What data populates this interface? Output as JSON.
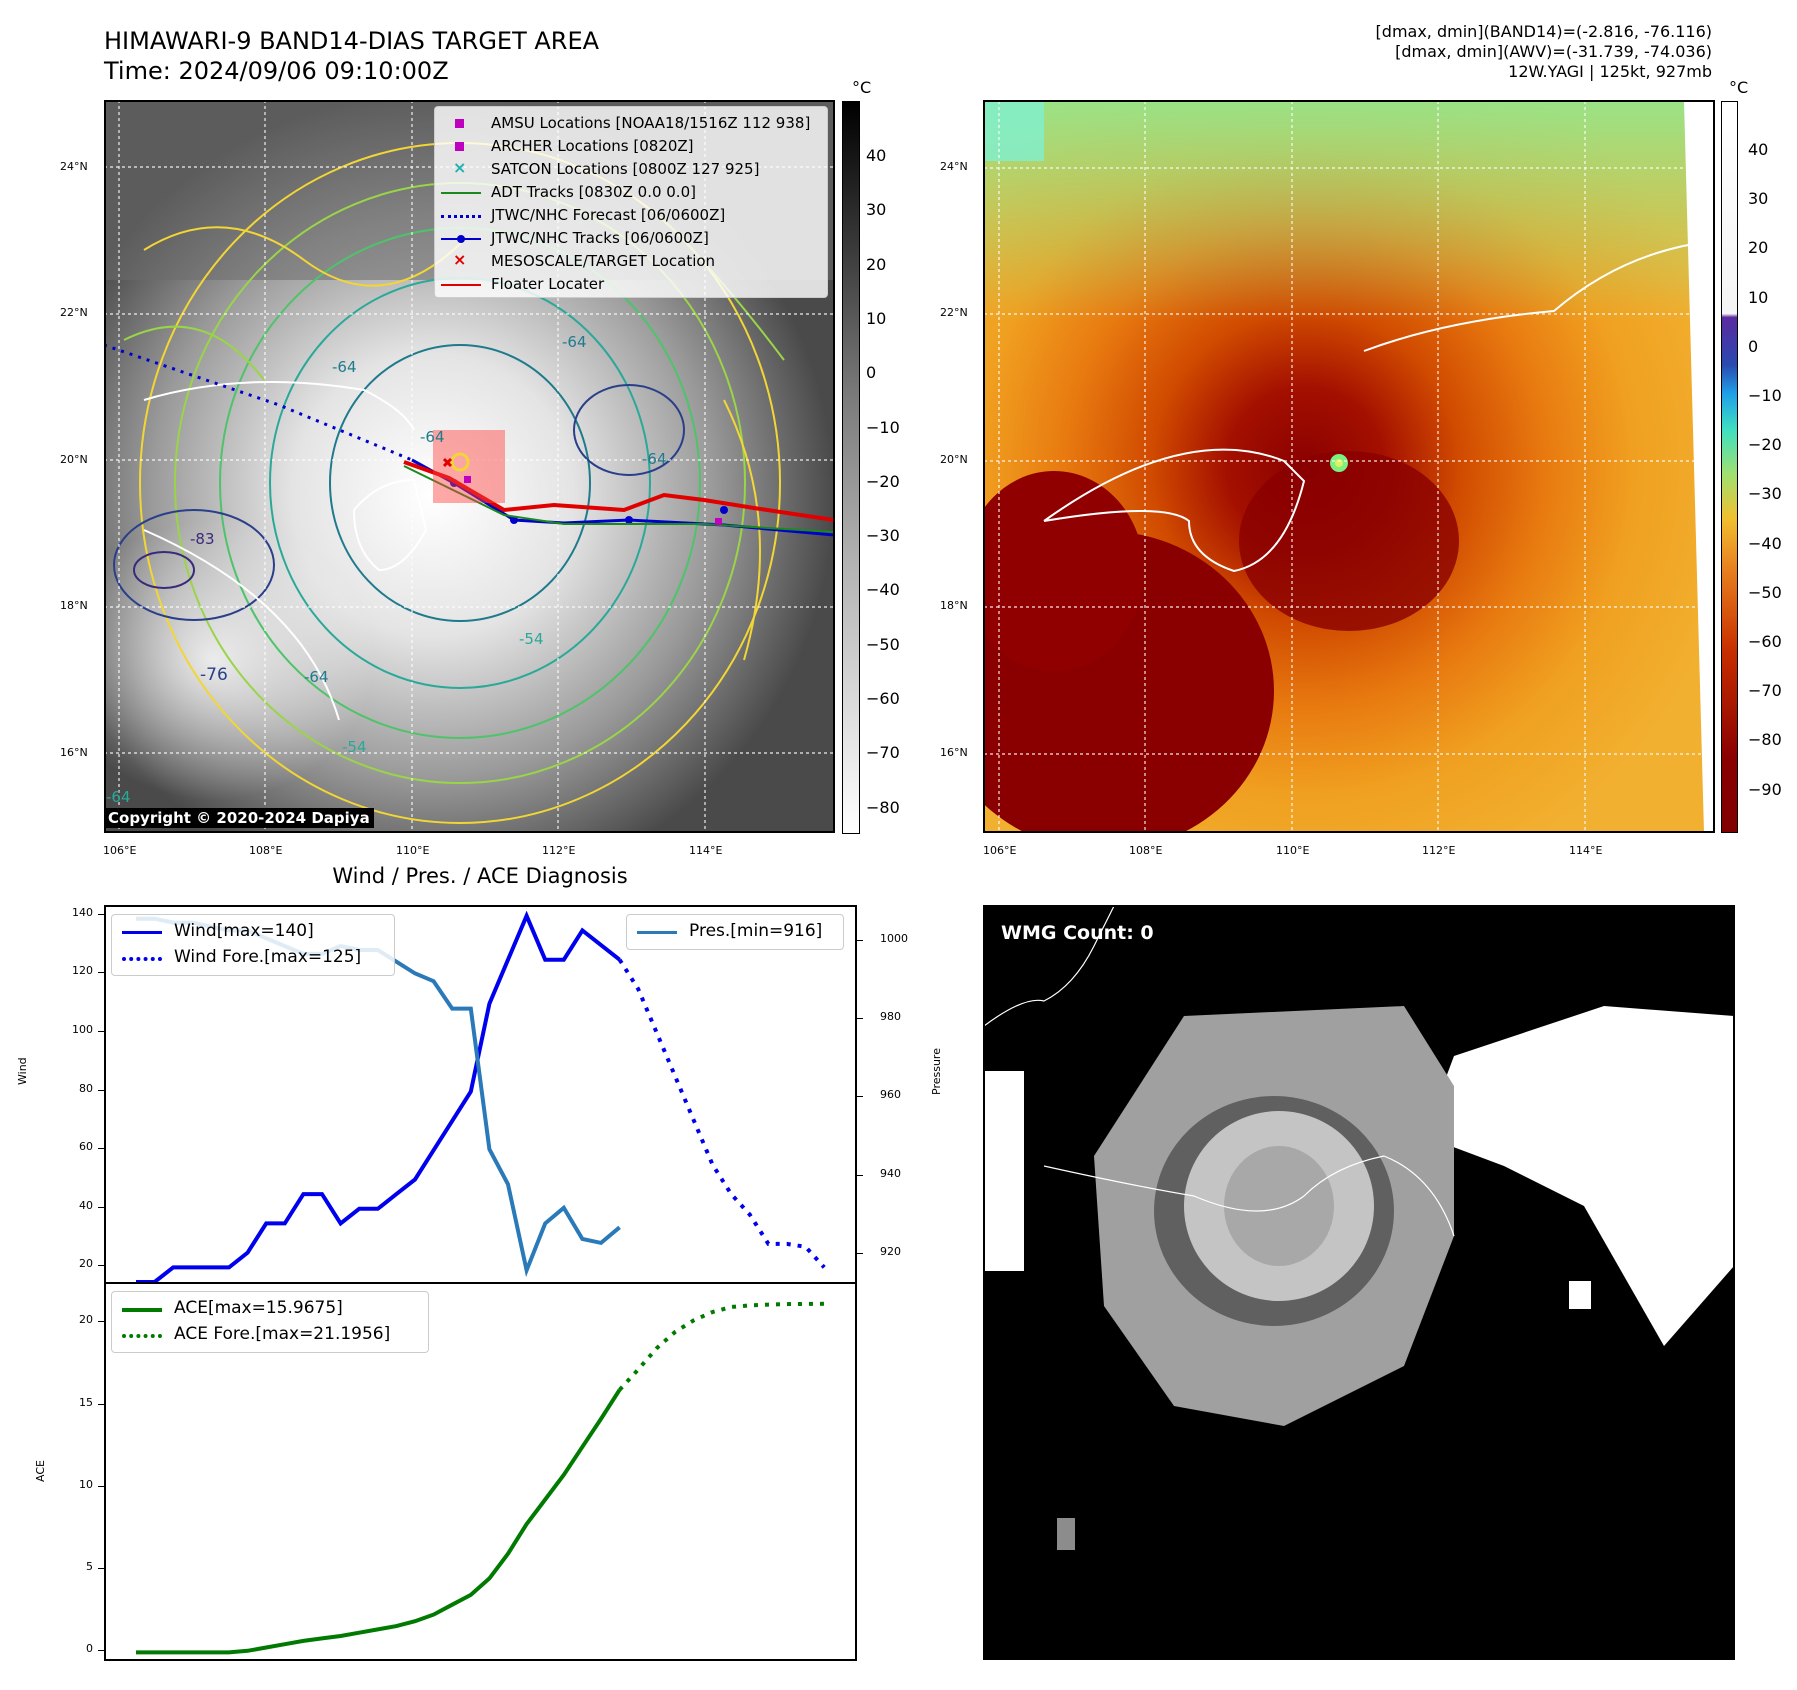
{
  "header": {
    "title_line1": "HIMAWARI-9 BAND14-DIAS TARGET AREA",
    "title_line2": "Time: 2024/09/06 09:10:00Z",
    "info_line1": "[dmax, dmin](BAND14)=(-2.816, -76.116)",
    "info_line2": "[dmax, dmin](AWV)=(-31.739, -74.036)",
    "info_line3": "12W.YAGI | 125kt, 927mb"
  },
  "map_axes": {
    "lon_labels": [
      "106°E",
      "108°E",
      "110°E",
      "112°E",
      "114°E"
    ],
    "lat_labels": [
      "24°N",
      "22°N",
      "20°N",
      "18°N",
      "16°N"
    ]
  },
  "ir_map": {
    "legend": [
      {
        "label": "AMSU Locations [NOAA18/1516Z 112 938]",
        "marker": "square",
        "color": "#c000c0"
      },
      {
        "label": "ARCHER Locations [0820Z]",
        "marker": "square",
        "color": "#c000c0"
      },
      {
        "label": "SATCON Locations [0800Z 127 925]",
        "marker": "x",
        "color": "#20b0b0"
      },
      {
        "label": "ADT Tracks [0830Z 0.0 0.0]",
        "marker": "line",
        "color": "#1a8a1a"
      },
      {
        "label": "JTWC/NHC Forecast [06/0600Z]",
        "marker": "dotted",
        "color": "#0000cc"
      },
      {
        "label": "JTWC/NHC Tracks [06/0600Z]",
        "marker": "line-dot",
        "color": "#0000cc"
      },
      {
        "label": "MESOSCALE/TARGET Location",
        "marker": "x",
        "color": "#e00000"
      },
      {
        "label": "Floater Locater",
        "marker": "line",
        "color": "#e00000"
      }
    ],
    "contour_labels": [
      "-64",
      "-64",
      "-64",
      "-54",
      "-54",
      "-64",
      "-64",
      "-83",
      "-76",
      "-64"
    ],
    "copyright": "Copyright © 2020-2024 Dapiya",
    "colorbar": {
      "unit": "°C",
      "ticks": [
        "40",
        "30",
        "20",
        "10",
        "0",
        "−10",
        "−20",
        "−30",
        "−40",
        "−50",
        "−60",
        "−70",
        "−80"
      ]
    }
  },
  "awv_map": {
    "colorbar": {
      "unit": "°C",
      "ticks": [
        "40",
        "30",
        "20",
        "10",
        "0",
        "−10",
        "−20",
        "−30",
        "−40",
        "−50",
        "−60",
        "−70",
        "−80",
        "−90"
      ]
    }
  },
  "wmg": {
    "label": "WMG Count: 0"
  },
  "chart_data": [
    {
      "type": "line",
      "title": "Wind / Pres. / ACE Diagnosis",
      "ylabel": "Wind",
      "ylabel_right": "Pressure",
      "ylim": [
        15,
        143
      ],
      "ylim_right": [
        913,
        1009
      ],
      "yticks": [
        20,
        40,
        60,
        80,
        100,
        120,
        140
      ],
      "yticks_right": [
        920,
        940,
        960,
        980,
        1000
      ],
      "series": [
        {
          "name": "Wind[max=140]",
          "axis": "left",
          "color": "#0000ee",
          "style": "solid",
          "values": [
            15,
            15,
            20,
            20,
            20,
            20,
            25,
            35,
            35,
            45,
            45,
            35,
            40,
            40,
            45,
            50,
            60,
            70,
            80,
            110,
            125,
            140,
            125,
            125,
            135,
            130,
            125
          ]
        },
        {
          "name": "Wind Fore.[max=125]",
          "axis": "left",
          "color": "#0000ee",
          "style": "dotted",
          "values": [
            125,
            115,
            100,
            85,
            70,
            55,
            45,
            38,
            28,
            28,
            27,
            20
          ]
        },
        {
          "name": "Pres.[min=916]",
          "axis": "right",
          "color": "#2a79b8",
          "style": "solid",
          "values": [
            1006,
            1006,
            1005,
            1005,
            1004,
            1003,
            1003,
            1001,
            999,
            997,
            997,
            999,
            998,
            998,
            995,
            992,
            990,
            983,
            983,
            947,
            938,
            916,
            928,
            932,
            924,
            923,
            927
          ]
        }
      ]
    },
    {
      "type": "line",
      "ylabel": "ACE",
      "ylim": [
        -0.4,
        22.4
      ],
      "yticks": [
        0,
        5,
        10,
        15,
        20
      ],
      "series": [
        {
          "name": "ACE[max=15.9675]",
          "color": "#007a00",
          "style": "solid",
          "values": [
            0,
            0,
            0,
            0,
            0,
            0,
            0.1,
            0.3,
            0.5,
            0.7,
            0.85,
            1.0,
            1.2,
            1.4,
            1.6,
            1.9,
            2.3,
            2.9,
            3.5,
            4.5,
            6.0,
            7.8,
            9.3,
            10.8,
            12.5,
            14.2,
            15.9675
          ]
        },
        {
          "name": "ACE Fore.[max=21.1956]",
          "color": "#007a00",
          "style": "dotted",
          "values": [
            15.9675,
            17.2,
            18.5,
            19.5,
            20.2,
            20.7,
            21.0,
            21.1,
            21.15,
            21.18,
            21.19,
            21.1956
          ]
        }
      ]
    }
  ]
}
